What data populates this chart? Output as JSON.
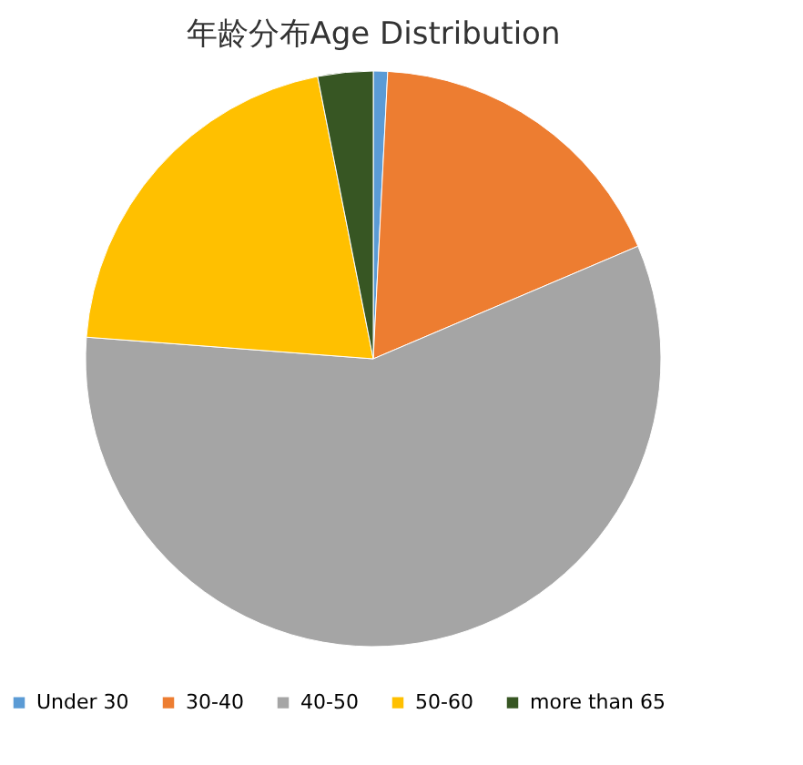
{
  "chart_data": {
    "type": "pie",
    "title": "年龄分布Age Distribution",
    "categories": [
      "Under 30",
      "30-40",
      "40-50",
      "50-60",
      "more than 65"
    ],
    "values": [
      0.8,
      17.8,
      57.6,
      20.7,
      3.1
    ],
    "colors": [
      "#5b9bd5",
      "#ed7d31",
      "#a5a5a5",
      "#ffc000",
      "#375623"
    ],
    "legend": "bottom"
  }
}
